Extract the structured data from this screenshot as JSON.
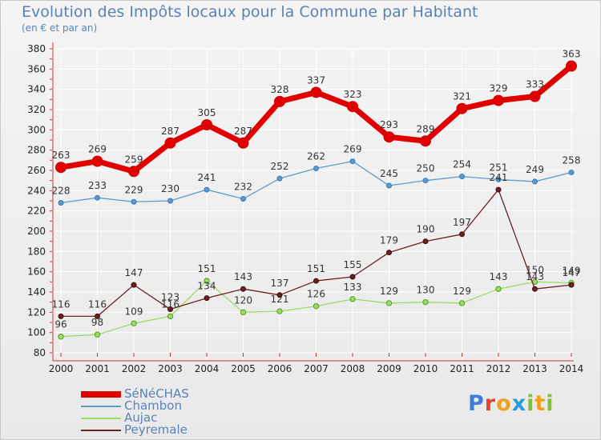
{
  "header": {
    "title": "Evolution des Impôts locaux pour la Commune par Habitant",
    "subtitle": "(en € et par an)"
  },
  "logo": {
    "text": "Proxiti"
  },
  "chart_data": {
    "type": "line",
    "title": "Evolution des Impôts locaux pour la Commune par Habitant",
    "subtitle": "(en € et par an)",
    "xlabel": "",
    "ylabel": "",
    "x": [
      "2000",
      "2001",
      "2002",
      "2003",
      "2004",
      "2005",
      "2006",
      "2007",
      "2008",
      "2009",
      "2010",
      "2011",
      "2012",
      "2013",
      "2014"
    ],
    "ylim": [
      80,
      380
    ],
    "yticks": [
      80,
      100,
      120,
      140,
      160,
      180,
      200,
      220,
      240,
      260,
      280,
      300,
      320,
      340,
      360,
      380
    ],
    "grid": true,
    "legend_position": "bottom-left",
    "series": [
      {
        "name": "SéNéCHAS",
        "color": "#e00000",
        "values": [
          263,
          269,
          259,
          287,
          305,
          287,
          328,
          337,
          323,
          293,
          289,
          321,
          329,
          333,
          363
        ]
      },
      {
        "name": "Chambon",
        "color": "#5b9bd0",
        "values": [
          228,
          233,
          229,
          230,
          241,
          232,
          252,
          262,
          269,
          245,
          250,
          254,
          251,
          249,
          258
        ]
      },
      {
        "name": "Aujac",
        "color": "#99dd66",
        "values": [
          96,
          98,
          109,
          116,
          151,
          120,
          121,
          126,
          133,
          129,
          130,
          129,
          143,
          150,
          149
        ]
      },
      {
        "name": "Peyremale",
        "color": "#6e2020",
        "values": [
          116,
          116,
          147,
          123,
          134,
          143,
          137,
          151,
          155,
          179,
          190,
          197,
          241,
          143,
          147
        ]
      }
    ]
  }
}
